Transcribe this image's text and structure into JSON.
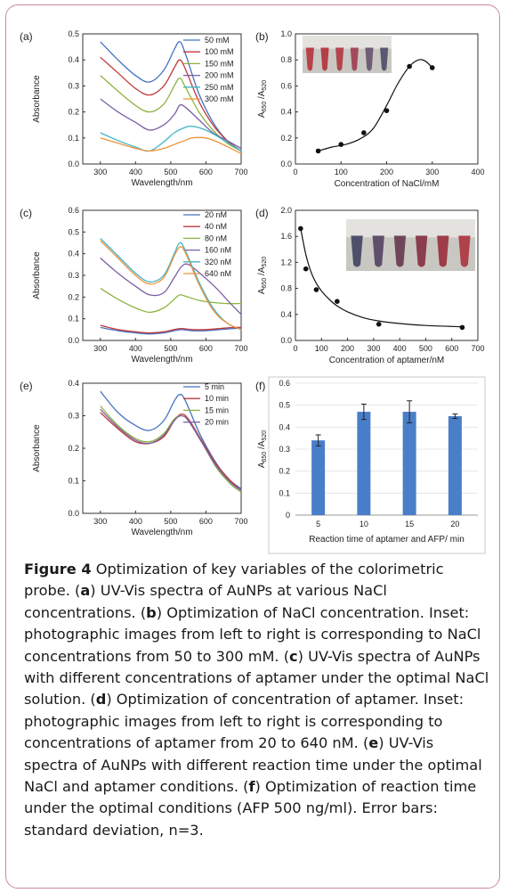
{
  "caption": {
    "figure_label": "Figure 4",
    "intro": " Optimization of key variables of the colorimetric probe. (",
    "a_label": "a",
    "a_text": ") UV-Vis spectra of AuNPs at various NaCl concentrations. (",
    "b_label": "b",
    "b_text": ") Optimization of NaCl concentration. Inset: photographic images from left to right is corresponding to NaCl concentrations from 50 to 300 mM. (",
    "c_label": "c",
    "c_text": ") UV-Vis spectra of AuNPs with different concentrations of aptamer under the optimal NaCl solution. (",
    "d_label": "d",
    "d_text": ") Optimization of concentration of aptamer. Inset: photographic images from left to right is corresponding to concentrations of aptamer from 20 to 640 nM. (",
    "e_label": "e",
    "e_text": ") UV-Vis spectra of AuNPs with different reaction time under the optimal NaCl and aptamer conditions. (",
    "f_label": "f",
    "f_text": ") Optimization of reaction time under the optimal conditions (AFP 500 ng/ml). Error bars: standard deviation, n=3."
  },
  "colors": {
    "c1": "#4472c4",
    "c2": "#c0393b",
    "c3": "#8db33f",
    "c4": "#7b5ea7",
    "c5": "#3fb5c9",
    "c6": "#f0943a",
    "bar": "#4a7ec9"
  },
  "chart_data": [
    {
      "panel": "(a)",
      "type": "line",
      "xlabel": "Wavelength/nm",
      "ylabel": "Absorbance",
      "xlim": [
        250,
        700
      ],
      "ylim": [
        0,
        0.5
      ],
      "xticks": [
        "300",
        "400",
        "500",
        "600",
        "700"
      ],
      "yticks": [
        "0.0",
        "0.1",
        "0.2",
        "0.3",
        "0.4",
        "0.5"
      ],
      "legend_position": "top-right",
      "series": [
        {
          "name": "50   mM",
          "x": [
            300,
            350,
            400,
            440,
            480,
            510,
            525,
            540,
            580,
            620,
            660,
            700
          ],
          "y": [
            0.47,
            0.4,
            0.34,
            0.315,
            0.36,
            0.44,
            0.47,
            0.43,
            0.27,
            0.16,
            0.09,
            0.05
          ]
        },
        {
          "name": "100  mM",
          "x": [
            300,
            350,
            400,
            440,
            480,
            510,
            525,
            540,
            580,
            620,
            660,
            700
          ],
          "y": [
            0.41,
            0.35,
            0.29,
            0.265,
            0.3,
            0.37,
            0.4,
            0.37,
            0.24,
            0.15,
            0.09,
            0.05
          ]
        },
        {
          "name": "150  mM",
          "x": [
            300,
            350,
            400,
            440,
            480,
            510,
            525,
            540,
            580,
            620,
            660,
            700
          ],
          "y": [
            0.34,
            0.28,
            0.225,
            0.2,
            0.23,
            0.3,
            0.33,
            0.3,
            0.2,
            0.13,
            0.08,
            0.05
          ]
        },
        {
          "name": "200  mM",
          "x": [
            300,
            350,
            400,
            440,
            480,
            510,
            525,
            540,
            580,
            620,
            660,
            700
          ],
          "y": [
            0.25,
            0.2,
            0.16,
            0.13,
            0.15,
            0.19,
            0.225,
            0.22,
            0.17,
            0.12,
            0.09,
            0.06
          ]
        },
        {
          "name": "250  mM",
          "x": [
            300,
            350,
            400,
            440,
            480,
            510,
            540,
            560,
            600,
            640,
            700
          ],
          "y": [
            0.12,
            0.09,
            0.065,
            0.05,
            0.085,
            0.12,
            0.14,
            0.145,
            0.13,
            0.1,
            0.05
          ]
        },
        {
          "name": "300  mM",
          "x": [
            300,
            350,
            400,
            440,
            480,
            510,
            540,
            560,
            600,
            640,
            700
          ],
          "y": [
            0.1,
            0.08,
            0.06,
            0.05,
            0.06,
            0.075,
            0.09,
            0.1,
            0.1,
            0.08,
            0.04
          ]
        }
      ]
    },
    {
      "panel": "(b)",
      "type": "scatter",
      "xlabel": "Concentration of NaCl/mM",
      "ylabel": "A650 /A520",
      "xlim": [
        0,
        400
      ],
      "ylim": [
        0,
        1.0
      ],
      "xticks": [
        "0",
        "100",
        "200",
        "300",
        "400"
      ],
      "yticks": [
        "0.0",
        "0.2",
        "0.4",
        "0.6",
        "0.8",
        "1.0"
      ],
      "points": {
        "x": [
          50,
          100,
          150,
          200,
          250,
          300
        ],
        "y": [
          0.1,
          0.15,
          0.24,
          0.41,
          0.75,
          0.74
        ]
      },
      "fit": {
        "x": [
          50,
          80,
          110,
          140,
          170,
          200,
          225,
          250,
          270,
          285,
          300
        ],
        "y": [
          0.1,
          0.13,
          0.15,
          0.19,
          0.27,
          0.45,
          0.62,
          0.75,
          0.8,
          0.79,
          0.74
        ]
      }
    },
    {
      "panel": "(c)",
      "type": "line",
      "xlabel": "Wavelength/nm",
      "ylabel": "Absorbance",
      "xlim": [
        250,
        700
      ],
      "ylim": [
        0,
        0.6
      ],
      "xticks": [
        "300",
        "400",
        "500",
        "600",
        "700"
      ],
      "yticks": [
        "0.0",
        "0.1",
        "0.2",
        "0.3",
        "0.4",
        "0.5",
        "0.6"
      ],
      "legend_position": "top-right",
      "series": [
        {
          "name": "20   nM",
          "x": [
            300,
            350,
            400,
            440,
            480,
            510,
            530,
            560,
            600,
            640,
            680,
            700
          ],
          "y": [
            0.06,
            0.045,
            0.035,
            0.03,
            0.035,
            0.045,
            0.05,
            0.045,
            0.045,
            0.05,
            0.055,
            0.055
          ]
        },
        {
          "name": "40   nM",
          "x": [
            300,
            350,
            400,
            440,
            480,
            510,
            530,
            560,
            600,
            640,
            680,
            700
          ],
          "y": [
            0.07,
            0.05,
            0.04,
            0.035,
            0.04,
            0.05,
            0.055,
            0.05,
            0.05,
            0.055,
            0.06,
            0.06
          ]
        },
        {
          "name": "80   nM",
          "x": [
            300,
            350,
            400,
            440,
            480,
            510,
            525,
            540,
            580,
            620,
            660,
            700
          ],
          "y": [
            0.24,
            0.19,
            0.15,
            0.13,
            0.15,
            0.19,
            0.21,
            0.205,
            0.185,
            0.175,
            0.17,
            0.17
          ]
        },
        {
          "name": "160  nM",
          "x": [
            300,
            350,
            400,
            440,
            480,
            510,
            530,
            550,
            590,
            630,
            670,
            700
          ],
          "y": [
            0.38,
            0.31,
            0.25,
            0.21,
            0.22,
            0.29,
            0.34,
            0.35,
            0.3,
            0.24,
            0.17,
            0.12
          ]
        },
        {
          "name": "320  nM",
          "x": [
            300,
            350,
            400,
            440,
            480,
            510,
            525,
            540,
            580,
            620,
            660,
            700
          ],
          "y": [
            0.47,
            0.39,
            0.31,
            0.27,
            0.3,
            0.4,
            0.45,
            0.42,
            0.27,
            0.15,
            0.08,
            0.05
          ]
        },
        {
          "name": "640  nM",
          "x": [
            300,
            350,
            400,
            440,
            480,
            510,
            525,
            540,
            580,
            620,
            660,
            700
          ],
          "y": [
            0.46,
            0.38,
            0.3,
            0.26,
            0.29,
            0.39,
            0.43,
            0.41,
            0.26,
            0.14,
            0.08,
            0.05
          ]
        }
      ]
    },
    {
      "panel": "(d)",
      "type": "scatter",
      "xlabel": "Concentration of aptamer/nM",
      "ylabel": "A650 /A520",
      "xlim": [
        0,
        700
      ],
      "ylim": [
        0,
        2.0
      ],
      "xticks": [
        "0",
        "100",
        "200",
        "300",
        "400",
        "500",
        "600",
        "700"
      ],
      "yticks": [
        "0.0",
        "0.4",
        "0.8",
        "1.2",
        "1.6",
        "2.0"
      ],
      "points": {
        "x": [
          20,
          40,
          80,
          160,
          320,
          640
        ],
        "y": [
          1.72,
          1.1,
          0.78,
          0.6,
          0.25,
          0.2
        ]
      },
      "fit": {
        "x": [
          20,
          40,
          60,
          80,
          100,
          130,
          160,
          200,
          260,
          320,
          400,
          500,
          640
        ],
        "y": [
          1.72,
          1.32,
          1.05,
          0.88,
          0.76,
          0.63,
          0.53,
          0.44,
          0.35,
          0.3,
          0.26,
          0.23,
          0.21
        ]
      }
    },
    {
      "panel": "(e)",
      "type": "line",
      "xlabel": "Wavelength/nm",
      "ylabel": "Absorbance",
      "xlim": [
        250,
        700
      ],
      "ylim": [
        0,
        0.4
      ],
      "xticks": [
        "300",
        "400",
        "500",
        "600",
        "700"
      ],
      "yticks": [
        "0.0",
        "0.1",
        "0.2",
        "0.3",
        "0.4"
      ],
      "legend_position": "top-right",
      "series": [
        {
          "name": "5 min",
          "x": [
            300,
            350,
            400,
            440,
            480,
            510,
            525,
            540,
            580,
            620,
            660,
            700
          ],
          "y": [
            0.375,
            0.31,
            0.27,
            0.255,
            0.285,
            0.345,
            0.365,
            0.35,
            0.25,
            0.17,
            0.11,
            0.075
          ]
        },
        {
          "name": "10 min",
          "x": [
            300,
            350,
            400,
            440,
            480,
            510,
            530,
            550,
            590,
            630,
            670,
            700
          ],
          "y": [
            0.31,
            0.26,
            0.22,
            0.215,
            0.235,
            0.285,
            0.305,
            0.29,
            0.22,
            0.15,
            0.1,
            0.07
          ]
        },
        {
          "name": "15 min",
          "x": [
            300,
            350,
            400,
            440,
            480,
            510,
            530,
            550,
            590,
            630,
            670,
            700
          ],
          "y": [
            0.33,
            0.27,
            0.23,
            0.22,
            0.245,
            0.29,
            0.3,
            0.285,
            0.215,
            0.14,
            0.09,
            0.065
          ]
        },
        {
          "name": "20 min",
          "x": [
            300,
            350,
            400,
            440,
            480,
            510,
            530,
            550,
            590,
            630,
            670,
            700
          ],
          "y": [
            0.32,
            0.265,
            0.225,
            0.215,
            0.24,
            0.285,
            0.3,
            0.285,
            0.215,
            0.145,
            0.095,
            0.07
          ]
        }
      ]
    },
    {
      "panel": "(f)",
      "type": "bar",
      "xlabel": "Reaction time of aptamer and AFP/ min",
      "ylabel": "A650 /A520",
      "categories": [
        "5",
        "10",
        "15",
        "20"
      ],
      "values": [
        0.34,
        0.47,
        0.47,
        0.45
      ],
      "errors": [
        0.025,
        0.035,
        0.05,
        0.01
      ],
      "ylim": [
        0,
        0.6
      ],
      "yticks": [
        "0",
        "0.1",
        "0.2",
        "0.3",
        "0.4",
        "0.5",
        "0.6"
      ]
    }
  ],
  "insets": {
    "b_tube_colors": [
      "#b8424a",
      "#b63e47",
      "#b3434d",
      "#a24a5c",
      "#6f5c75",
      "#5b5871"
    ],
    "d_tube_colors": [
      "#4e4f6a",
      "#5f4f6b",
      "#6f4659",
      "#8a3d4c",
      "#9e3d48",
      "#b0424a"
    ]
  }
}
